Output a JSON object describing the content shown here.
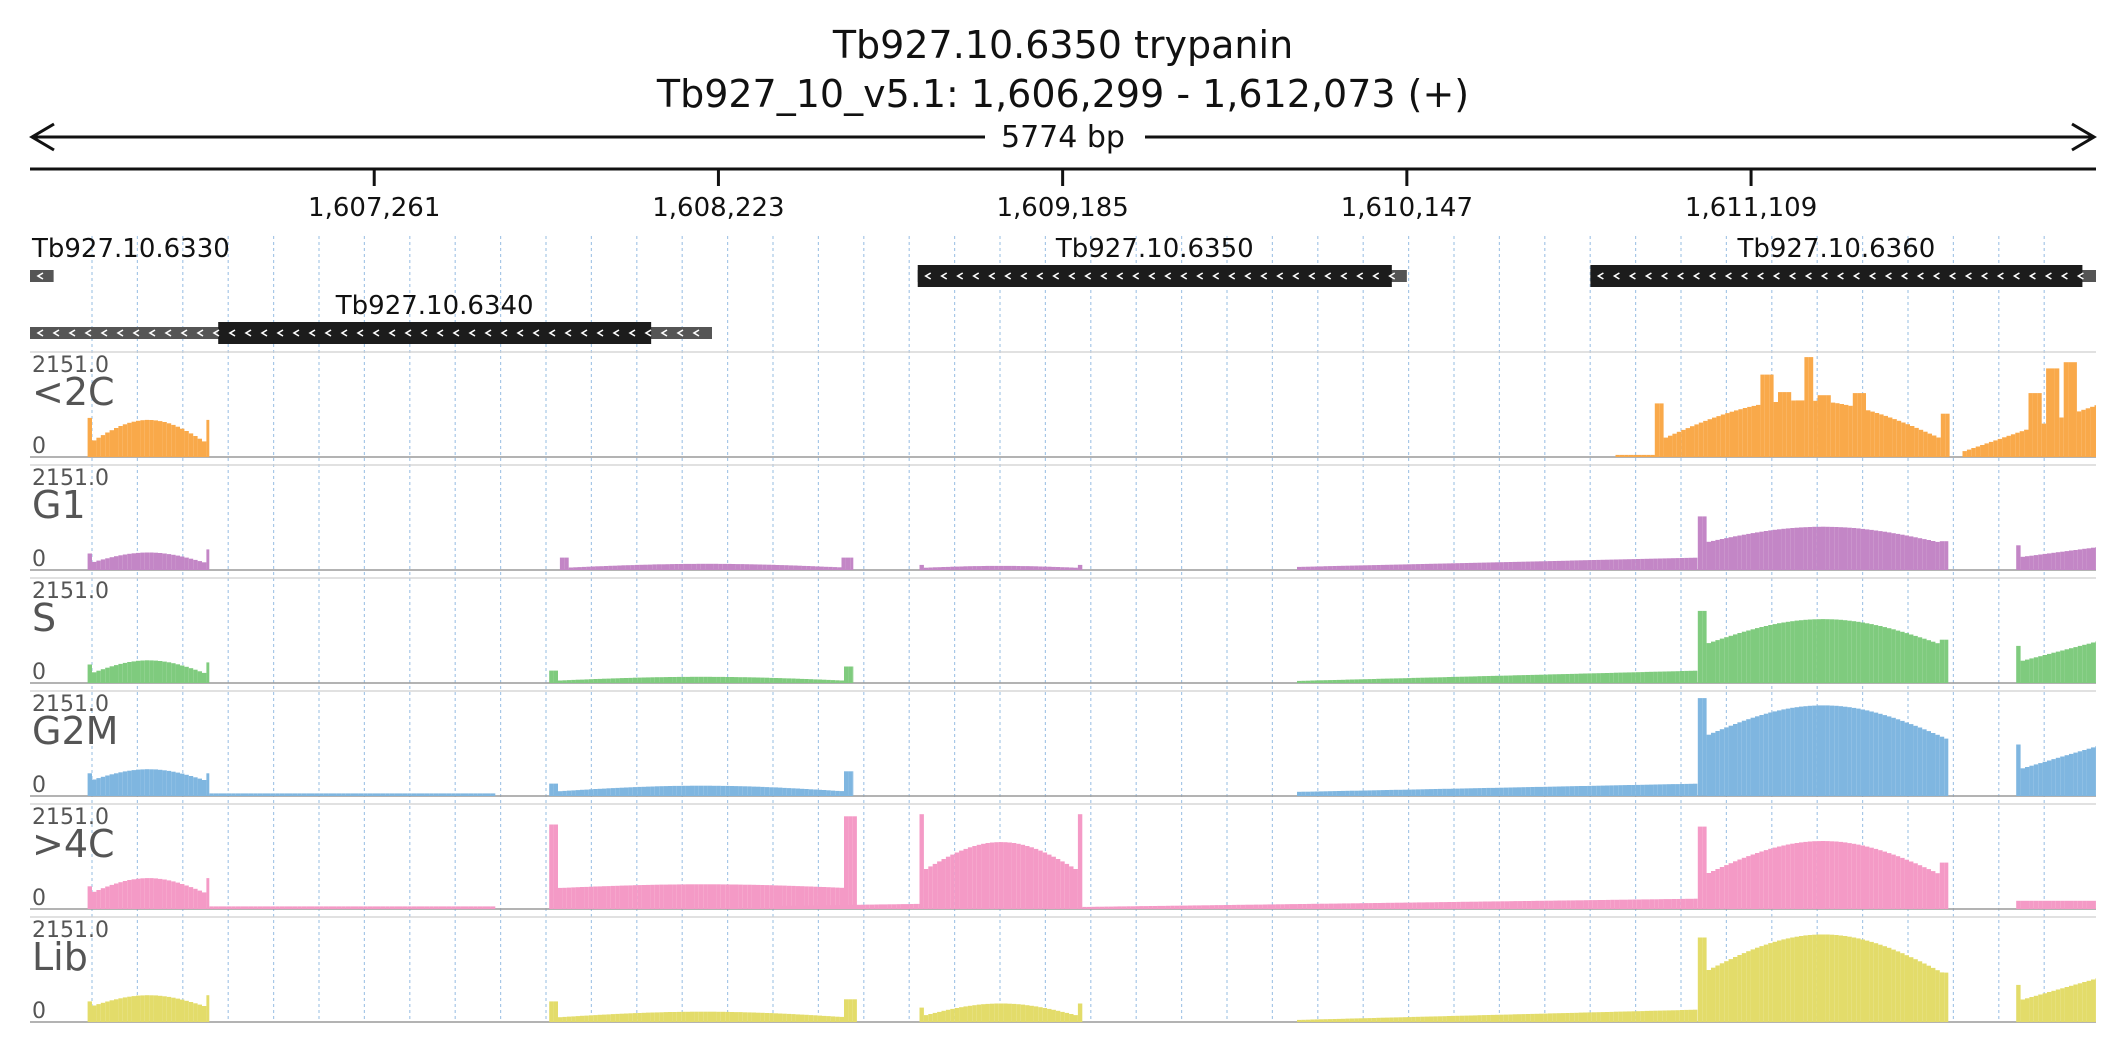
{
  "header": {
    "title": "Tb927.10.6350  trypanin",
    "locus": "Tb927_10_v5.1: 1,606,299 - 1,612,073 (+)",
    "span": "5774 bp"
  },
  "region": {
    "chrom": "Tb927_10_v5.1",
    "start": 1606299,
    "end": 1612073,
    "strand": "+"
  },
  "ticks": [
    {
      "pos": 1607261,
      "label": "1,607,261"
    },
    {
      "pos": 1608223,
      "label": "1,608,223"
    },
    {
      "pos": 1609185,
      "label": "1,609,185"
    },
    {
      "pos": 1610147,
      "label": "1,610,147"
    },
    {
      "pos": 1611109,
      "label": "1,611,109"
    }
  ],
  "genes": [
    {
      "id": "Tb927.10.6330",
      "strand": "-",
      "row": 0,
      "utr": [
        1606299,
        1606365
      ],
      "cds": null,
      "label_pos": "left"
    },
    {
      "id": "Tb927.10.6340",
      "strand": "-",
      "row": 1,
      "utr": [
        1606299,
        1608205
      ],
      "cds": [
        1606825,
        1608035
      ],
      "label_pos": "center"
    },
    {
      "id": "Tb927.10.6350",
      "strand": "-",
      "row": 0,
      "utr": [
        1608780,
        1610147
      ],
      "cds": [
        1608780,
        1610105
      ],
      "label_pos": "center"
    },
    {
      "id": "Tb927.10.6360",
      "strand": "-",
      "row": 0,
      "utr": [
        1610660,
        1612073
      ],
      "cds": [
        1610660,
        1612035
      ],
      "label_pos": "center"
    }
  ],
  "track_scale": {
    "max_label": "2151.0",
    "min_label": "0"
  },
  "tracks": [
    {
      "name": "<2C",
      "color": "#f9a94a",
      "regions": [
        {
          "from": 1606460,
          "to": 1606800,
          "type": "hump",
          "base": 0.12,
          "peak": 0.36,
          "edges": [
            0.38,
            0.36
          ]
        },
        {
          "from": 1610730,
          "to": 1610840,
          "type": "flat",
          "base": 0.02,
          "peak": 0.02
        },
        {
          "from": 1610840,
          "to": 1611665,
          "type": "hump",
          "base": 0.14,
          "peak": 0.55,
          "edges": [
            0.52,
            0.42
          ],
          "spikes": [
            [
              1611150,
              0.8
            ],
            [
              1611200,
              0.63
            ],
            [
              1611270,
              0.97
            ],
            [
              1611310,
              0.6
            ],
            [
              1611410,
              0.62
            ]
          ]
        },
        {
          "from": 1611700,
          "to": 1612073,
          "type": "rise",
          "base": 0.05,
          "peak": 0.5,
          "spikes": [
            [
              1611900,
              0.62
            ],
            [
              1611955,
              0.86
            ],
            [
              1612000,
              0.92
            ]
          ]
        }
      ]
    },
    {
      "name": "G1",
      "color": "#c386c6",
      "regions": [
        {
          "from": 1606460,
          "to": 1606800,
          "type": "hump",
          "base": 0.06,
          "peak": 0.17,
          "edges": [
            0.16,
            0.2
          ]
        },
        {
          "from": 1607780,
          "to": 1608600,
          "type": "hump",
          "base": 0.02,
          "peak": 0.06,
          "edges": [
            0.12,
            0.12
          ]
        },
        {
          "from": 1608785,
          "to": 1609240,
          "type": "hump",
          "base": 0.02,
          "peak": 0.04,
          "edges": [
            0.05,
            0.05
          ]
        },
        {
          "from": 1609840,
          "to": 1610960,
          "type": "rise",
          "base": 0.03,
          "peak": 0.12
        },
        {
          "from": 1610960,
          "to": 1611660,
          "type": "hump",
          "base": 0.25,
          "peak": 0.42,
          "edges": [
            0.52,
            0.28
          ]
        },
        {
          "from": 1611850,
          "to": 1612073,
          "type": "rise",
          "base": 0.12,
          "peak": 0.22,
          "edges": [
            0.24,
            0.2
          ]
        }
      ]
    },
    {
      "name": "S",
      "color": "#7fcb7e",
      "regions": [
        {
          "from": 1606460,
          "to": 1606800,
          "type": "hump",
          "base": 0.08,
          "peak": 0.22,
          "edges": [
            0.18,
            0.2
          ]
        },
        {
          "from": 1607750,
          "to": 1608600,
          "type": "hump",
          "base": 0.02,
          "peak": 0.06,
          "edges": [
            0.12,
            0.16
          ]
        },
        {
          "from": 1609840,
          "to": 1610960,
          "type": "rise",
          "base": 0.02,
          "peak": 0.12
        },
        {
          "from": 1610960,
          "to": 1611660,
          "type": "hump",
          "base": 0.35,
          "peak": 0.62,
          "edges": [
            0.7,
            0.42
          ]
        },
        {
          "from": 1611850,
          "to": 1612073,
          "type": "rise",
          "base": 0.2,
          "peak": 0.4,
          "edges": [
            0.36,
            0.3
          ]
        }
      ]
    },
    {
      "name": "G2M",
      "color": "#7fb6e0",
      "regions": [
        {
          "from": 1606460,
          "to": 1606800,
          "type": "hump",
          "base": 0.14,
          "peak": 0.26,
          "edges": [
            0.22,
            0.22
          ]
        },
        {
          "from": 1606800,
          "to": 1607600,
          "type": "flat",
          "base": 0.02,
          "peak": 0.03
        },
        {
          "from": 1607750,
          "to": 1608600,
          "type": "hump",
          "base": 0.04,
          "peak": 0.1,
          "edges": [
            0.12,
            0.24
          ]
        },
        {
          "from": 1609840,
          "to": 1610960,
          "type": "rise",
          "base": 0.04,
          "peak": 0.12
        },
        {
          "from": 1610960,
          "to": 1611660,
          "type": "hump",
          "base": 0.55,
          "peak": 0.88,
          "edges": [
            0.95,
            0.52
          ]
        },
        {
          "from": 1611850,
          "to": 1612073,
          "type": "rise",
          "base": 0.25,
          "peak": 0.48,
          "edges": [
            0.5,
            0.3
          ]
        }
      ]
    },
    {
      "name": ">4C",
      "color": "#f49ac6",
      "regions": [
        {
          "from": 1606460,
          "to": 1606800,
          "type": "hump",
          "base": 0.14,
          "peak": 0.3,
          "edges": [
            0.22,
            0.3
          ]
        },
        {
          "from": 1606800,
          "to": 1607600,
          "type": "flat",
          "base": 0.02,
          "peak": 0.03
        },
        {
          "from": 1607750,
          "to": 1608610,
          "type": "hump",
          "base": 0.2,
          "peak": 0.24,
          "edges": [
            0.82,
            0.9
          ]
        },
        {
          "from": 1608400,
          "to": 1608790,
          "type": "rise",
          "base": 0.03,
          "peak": 0.05
        },
        {
          "from": 1608785,
          "to": 1609240,
          "type": "hump",
          "base": 0.35,
          "peak": 0.65,
          "edges": [
            0.92,
            0.92
          ]
        },
        {
          "from": 1609240,
          "to": 1610960,
          "type": "rise",
          "base": 0.02,
          "peak": 0.1
        },
        {
          "from": 1610960,
          "to": 1611660,
          "type": "hump",
          "base": 0.3,
          "peak": 0.66,
          "edges": [
            0.8,
            0.45
          ]
        },
        {
          "from": 1611850,
          "to": 1612073,
          "type": "flat",
          "base": 0.06,
          "peak": 0.1
        }
      ]
    },
    {
      "name": "Lib",
      "color": "#e3dc6a",
      "regions": [
        {
          "from": 1606460,
          "to": 1606800,
          "type": "hump",
          "base": 0.14,
          "peak": 0.26,
          "edges": [
            0.2,
            0.26
          ]
        },
        {
          "from": 1607750,
          "to": 1608610,
          "type": "hump",
          "base": 0.04,
          "peak": 0.1,
          "edges": [
            0.2,
            0.22
          ]
        },
        {
          "from": 1608785,
          "to": 1609240,
          "type": "hump",
          "base": 0.05,
          "peak": 0.18,
          "edges": [
            0.14,
            0.18
          ]
        },
        {
          "from": 1609840,
          "to": 1610960,
          "type": "rise",
          "base": 0.02,
          "peak": 0.12
        },
        {
          "from": 1610960,
          "to": 1611660,
          "type": "hump",
          "base": 0.45,
          "peak": 0.85,
          "edges": [
            0.82,
            0.48
          ]
        },
        {
          "from": 1611850,
          "to": 1612073,
          "type": "rise",
          "base": 0.2,
          "peak": 0.42,
          "edges": [
            0.36,
            0.3
          ]
        }
      ]
    }
  ]
}
